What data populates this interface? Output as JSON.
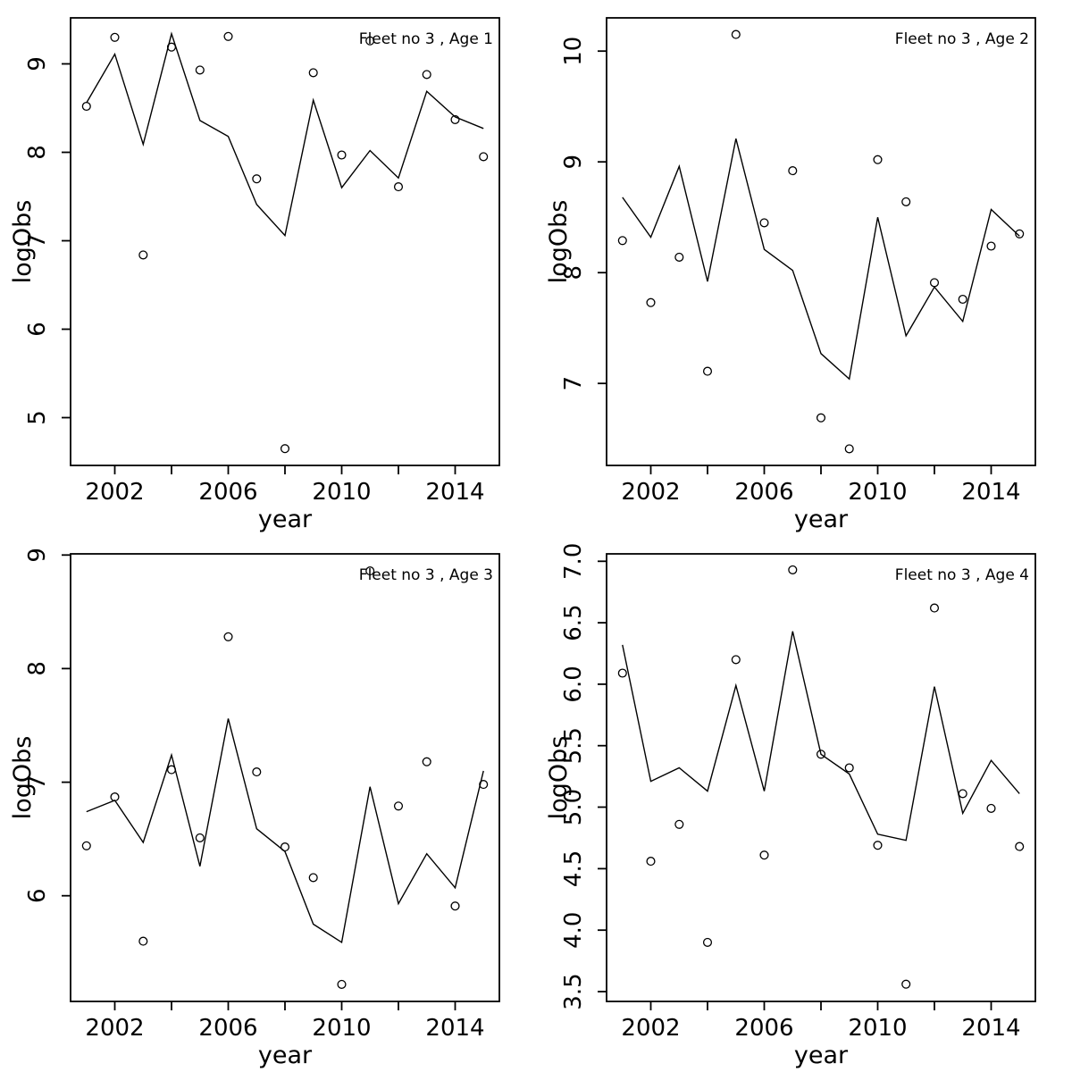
{
  "figure": {
    "background": "#ffffff",
    "foreground": "#000000",
    "marker_shape": "open-circle",
    "line_color": "#000000",
    "marker_color": "#000000"
  },
  "chart_data": [
    {
      "type": "line",
      "subtype": "line+scatter",
      "title": "Fleet no 3 , Age 1",
      "xlabel": "year",
      "ylabel": "logObs",
      "x": [
        2001,
        2002,
        2003,
        2004,
        2005,
        2006,
        2007,
        2008,
        2009,
        2010,
        2011,
        2012,
        2013,
        2014,
        2015
      ],
      "series": [
        {
          "name": "observed-points",
          "marker": "circle",
          "values": [
            8.52,
            9.3,
            6.84,
            9.19,
            8.93,
            9.31,
            7.7,
            4.65,
            8.9,
            7.97,
            9.26,
            7.61,
            8.88,
            8.37,
            7.95
          ]
        },
        {
          "name": "fitted-line",
          "style": "line",
          "values": [
            8.56,
            9.11,
            8.09,
            9.34,
            8.36,
            8.18,
            7.41,
            7.06,
            8.59,
            7.6,
            8.02,
            7.71,
            8.69,
            8.4,
            8.27
          ]
        }
      ],
      "xlim": [
        2000.44,
        2015.56
      ],
      "ylim": [
        4.46,
        9.52
      ],
      "xticks": [
        2002,
        2004,
        2006,
        2008,
        2010,
        2012,
        2014
      ],
      "xtick_labels": [
        "2002",
        "",
        "2006",
        "",
        "2010",
        "",
        "2014"
      ],
      "yticks": [
        5,
        6,
        7,
        8,
        9
      ],
      "ytick_labels": [
        "5",
        "6",
        "7",
        "8",
        "9"
      ],
      "grid": false,
      "legend": "none"
    },
    {
      "type": "line",
      "subtype": "line+scatter",
      "title": "Fleet no 3 , Age 2",
      "xlabel": "year",
      "ylabel": "logObs",
      "x": [
        2001,
        2002,
        2003,
        2004,
        2005,
        2006,
        2007,
        2008,
        2009,
        2010,
        2011,
        2012,
        2013,
        2014,
        2015
      ],
      "series": [
        {
          "name": "observed-points",
          "marker": "circle",
          "values": [
            8.29,
            7.73,
            8.14,
            7.11,
            10.15,
            8.45,
            8.92,
            6.69,
            6.41,
            9.02,
            8.64,
            7.91,
            7.76,
            8.24,
            8.35
          ]
        },
        {
          "name": "fitted-line",
          "style": "line",
          "values": [
            8.68,
            8.32,
            8.96,
            7.92,
            9.21,
            8.21,
            8.02,
            7.27,
            7.04,
            8.5,
            7.43,
            7.87,
            7.56,
            8.57,
            8.33
          ]
        }
      ],
      "xlim": [
        2000.44,
        2015.56
      ],
      "ylim": [
        6.26,
        10.3
      ],
      "xticks": [
        2002,
        2004,
        2006,
        2008,
        2010,
        2012,
        2014
      ],
      "xtick_labels": [
        "2002",
        "",
        "2006",
        "",
        "2010",
        "",
        "2014"
      ],
      "yticks": [
        7,
        8,
        9,
        10
      ],
      "ytick_labels": [
        "7",
        "8",
        "9",
        "10"
      ],
      "grid": false,
      "legend": "none"
    },
    {
      "type": "line",
      "subtype": "line+scatter",
      "title": "Fleet no 3 , Age 3",
      "xlabel": "year",
      "ylabel": "logObs",
      "x": [
        2001,
        2002,
        2003,
        2004,
        2005,
        2006,
        2007,
        2008,
        2009,
        2010,
        2011,
        2012,
        2013,
        2014,
        2015
      ],
      "series": [
        {
          "name": "observed-points",
          "marker": "circle",
          "values": [
            6.44,
            6.87,
            5.6,
            7.11,
            6.51,
            8.28,
            7.09,
            6.43,
            6.16,
            5.22,
            8.86,
            6.79,
            7.18,
            5.91,
            6.98
          ]
        },
        {
          "name": "fitted-line",
          "style": "line",
          "values": [
            6.74,
            6.84,
            6.47,
            7.24,
            6.26,
            7.56,
            6.59,
            6.39,
            5.75,
            5.59,
            6.96,
            5.93,
            6.37,
            6.07,
            7.1
          ]
        }
      ],
      "xlim": [
        2000.44,
        2015.56
      ],
      "ylim": [
        5.07,
        9.01
      ],
      "xticks": [
        2002,
        2004,
        2006,
        2008,
        2010,
        2012,
        2014
      ],
      "xtick_labels": [
        "2002",
        "",
        "2006",
        "",
        "2010",
        "",
        "2014"
      ],
      "yticks": [
        6,
        7,
        8,
        9
      ],
      "ytick_labels": [
        "6",
        "7",
        "8",
        "9"
      ],
      "grid": false,
      "legend": "none"
    },
    {
      "type": "line",
      "subtype": "line+scatter",
      "title": "Fleet no 3 , Age 4",
      "xlabel": "year",
      "ylabel": "logObs",
      "x": [
        2001,
        2002,
        2003,
        2004,
        2005,
        2006,
        2007,
        2008,
        2009,
        2010,
        2011,
        2012,
        2013,
        2014,
        2015
      ],
      "series": [
        {
          "name": "observed-points",
          "marker": "circle",
          "values": [
            6.09,
            4.56,
            4.86,
            3.9,
            6.2,
            4.61,
            6.93,
            5.43,
            5.32,
            4.69,
            3.56,
            6.62,
            5.11,
            4.99,
            4.68
          ]
        },
        {
          "name": "fitted-line",
          "style": "line",
          "values": [
            6.32,
            5.21,
            5.32,
            5.13,
            5.99,
            5.13,
            6.43,
            5.43,
            5.27,
            4.78,
            4.73,
            5.98,
            4.95,
            5.38,
            5.11
          ]
        }
      ],
      "xlim": [
        2000.44,
        2015.56
      ],
      "ylim": [
        3.42,
        7.06
      ],
      "xticks": [
        2002,
        2004,
        2006,
        2008,
        2010,
        2012,
        2014
      ],
      "xtick_labels": [
        "2002",
        "",
        "2006",
        "",
        "2010",
        "",
        "2014"
      ],
      "yticks": [
        3.5,
        4.0,
        4.5,
        5.0,
        5.5,
        6.0,
        6.5,
        7.0
      ],
      "ytick_labels": [
        "3.5",
        "4.0",
        "4.5",
        "5.0",
        "5.5",
        "6.0",
        "6.5",
        "7.0"
      ],
      "grid": false,
      "legend": "none"
    }
  ]
}
